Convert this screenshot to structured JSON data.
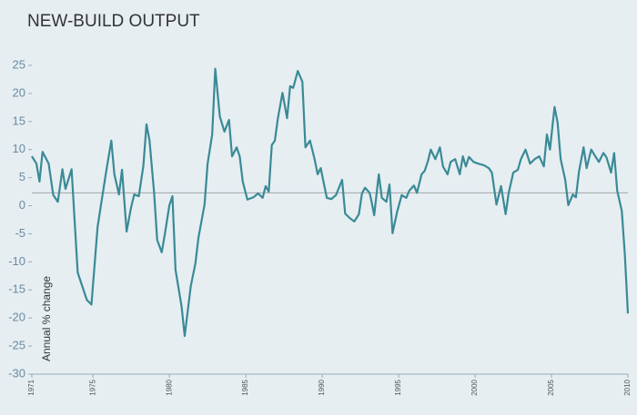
{
  "chart_data": {
    "type": "line",
    "title": "NEW-BUILD OUTPUT",
    "y_label": "Annual % change",
    "x": [
      1971.0,
      1971.3,
      1971.5,
      1971.7,
      1972.1,
      1972.4,
      1972.7,
      1973.0,
      1973.2,
      1973.6,
      1974.0,
      1974.6,
      1974.9,
      1975.3,
      1975.6,
      1975.9,
      1976.2,
      1976.4,
      1976.7,
      1976.9,
      1977.2,
      1977.5,
      1977.7,
      1978.0,
      1978.3,
      1978.5,
      1978.7,
      1979.0,
      1979.2,
      1979.5,
      1979.7,
      1980.0,
      1980.2,
      1980.4,
      1980.8,
      1981.0,
      1981.4,
      1981.7,
      1981.9,
      1982.3,
      1982.5,
      1982.8,
      1983.0,
      1983.3,
      1983.6,
      1983.9,
      1984.1,
      1984.4,
      1984.6,
      1984.8,
      1985.1,
      1985.5,
      1985.8,
      1986.1,
      1986.3,
      1986.5,
      1986.7,
      1986.9,
      1987.1,
      1987.4,
      1987.7,
      1987.9,
      1988.1,
      1988.4,
      1988.7,
      1988.9,
      1989.2,
      1989.5,
      1989.7,
      1989.9,
      1990.3,
      1990.6,
      1990.9,
      1991.3,
      1991.5,
      1991.8,
      1992.1,
      1992.4,
      1992.6,
      1992.8,
      1993.1,
      1993.2,
      1993.4,
      1993.7,
      1993.9,
      1994.2,
      1994.4,
      1994.6,
      1994.9,
      1995.2,
      1995.5,
      1995.7,
      1996.0,
      1996.2,
      1996.5,
      1996.7,
      1996.9,
      1997.1,
      1997.4,
      1997.7,
      1997.9,
      1998.2,
      1998.4,
      1998.7,
      1999.0,
      1999.2,
      1999.4,
      1999.6,
      1999.9,
      2000.2,
      2000.6,
      2000.9,
      2001.1,
      2001.4,
      2001.7,
      2002.0,
      2002.2,
      2002.5,
      2002.8,
      2003.0,
      2003.3,
      2003.6,
      2003.9,
      2004.2,
      2004.5,
      2004.7,
      2004.9,
      2005.2,
      2005.4,
      2005.6,
      2005.9,
      2006.1,
      2006.4,
      2006.6,
      2006.8,
      2007.1,
      2007.3,
      2007.6,
      2007.8,
      2008.1,
      2008.4,
      2008.6,
      2008.9,
      2009.1,
      2009.3,
      2009.6,
      2009.8,
      2010.0
    ],
    "series": [
      {
        "color": "#3a8a96",
        "values": [
          8.8,
          7.5,
          4.3,
          9.6,
          7.5,
          1.9,
          0.7,
          6.5,
          3.0,
          6.5,
          -11.9,
          -16.8,
          -17.6,
          -3.8,
          1.5,
          6.7,
          11.6,
          5.6,
          2.0,
          6.4,
          -4.6,
          -0.2,
          2.0,
          1.7,
          7.2,
          14.5,
          11.6,
          2.3,
          -6.1,
          -8.3,
          -5.1,
          0.1,
          1.7,
          -11.4,
          -18.0,
          -23.2,
          -14.3,
          -10.3,
          -5.7,
          0.2,
          7.5,
          12.7,
          24.4,
          15.9,
          13.2,
          15.3,
          8.8,
          10.4,
          8.8,
          4.3,
          1.1,
          1.5,
          2.2,
          1.4,
          3.5,
          2.5,
          10.8,
          11.6,
          15.6,
          20.1,
          15.6,
          21.3,
          21.0,
          24.0,
          22.1,
          10.4,
          11.6,
          8.3,
          5.6,
          6.7,
          1.4,
          1.2,
          1.9,
          4.6,
          -1.4,
          -2.2,
          -2.8,
          -1.5,
          2.2,
          3.2,
          2.3,
          1.1,
          -1.7,
          5.6,
          1.4,
          0.7,
          3.8,
          -4.9,
          -1.1,
          1.9,
          1.4,
          2.7,
          3.6,
          2.3,
          5.6,
          6.2,
          7.8,
          10.0,
          8.3,
          10.4,
          7.0,
          5.6,
          7.8,
          8.3,
          5.6,
          8.8,
          7.0,
          8.7,
          7.8,
          7.5,
          7.2,
          6.7,
          5.9,
          0.2,
          3.5,
          -1.5,
          2.3,
          5.9,
          6.4,
          8.3,
          10.0,
          7.5,
          8.3,
          8.8,
          7.0,
          12.7,
          10.0,
          17.6,
          14.8,
          8.3,
          4.6,
          0.1,
          2.0,
          1.5,
          6.1,
          10.4,
          6.7,
          10.0,
          9.1,
          7.8,
          9.4,
          8.6,
          5.9,
          9.4,
          2.7,
          -0.9,
          -8.7,
          -19.2
        ]
      }
    ],
    "hline": 2.3,
    "xlim": [
      1971,
      2010
    ],
    "xticks": [
      1971,
      1975,
      1980,
      1985,
      1990,
      1995,
      2000,
      2005,
      2010
    ],
    "ylim": [
      -30,
      25
    ],
    "yticks": [
      25,
      20,
      15,
      10,
      5,
      0,
      -5,
      -10,
      -15,
      -20,
      -25,
      -30
    ]
  }
}
